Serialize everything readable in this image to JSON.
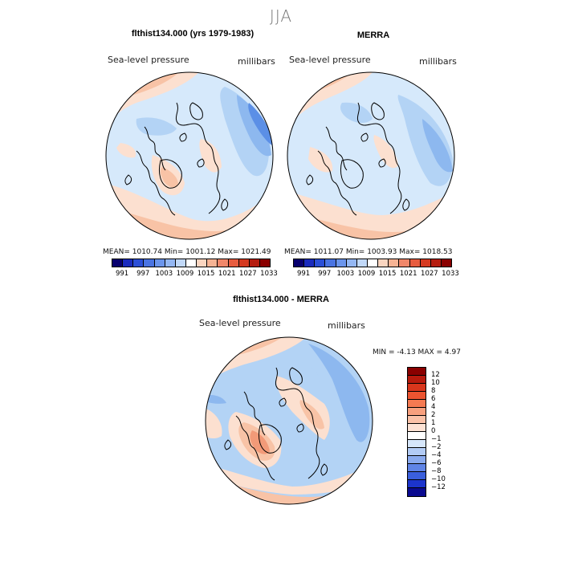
{
  "figure": {
    "season_title": "JJA",
    "colors": {
      "ice": "#d6e9fb",
      "light_blue": "#b3d3f5",
      "mid_blue": "#8db8ef",
      "blue": "#5b8fe6",
      "dark_blue": "#3061d8",
      "peach": "#fce0d0",
      "light_orange": "#f8c3a6",
      "orange": "#f29a78",
      "red_orange": "#e8643f"
    }
  },
  "panels": {
    "model": {
      "title": "flthist134.000 (yrs 1979-1983)",
      "field_label": "Sea-level pressure",
      "units_label": "millibars",
      "stats": "MEAN= 1010.74   Min= 1001.12   Max= 1021.49"
    },
    "obs": {
      "title": "MERRA",
      "field_label": "Sea-level pressure",
      "units_label": "millibars",
      "stats": "MEAN= 1011.07   Min= 1003.93   Max= 1018.53"
    },
    "diff": {
      "title": "flthist134.000 - MERRA",
      "field_label": "Sea-level pressure",
      "units_label": "millibars",
      "stats": "MIN =   -4.13 MAX =    4.97"
    }
  },
  "abs_colorbar": {
    "ticks": [
      "991",
      "997",
      "1003",
      "1009",
      "1015",
      "1021",
      "1027",
      "1033"
    ],
    "colors": [
      "#08006e",
      "#1a2bbd",
      "#2b4fd6",
      "#4a74e2",
      "#6b95ec",
      "#94b7f3",
      "#c1d8f8",
      "#ffffff",
      "#fad5c0",
      "#f6b394",
      "#f0876a",
      "#e75c3f",
      "#d53a21",
      "#b51d10",
      "#8a0000"
    ]
  },
  "diff_colorbar": {
    "ticks": [
      "12",
      "10",
      "8",
      "6",
      "4",
      "2",
      "1",
      "0",
      "−1",
      "−2",
      "−4",
      "−6",
      "−8",
      "−10",
      "−12"
    ],
    "colors": [
      "#8a0000",
      "#b81a0d",
      "#d9361c",
      "#ec5430",
      "#f57a52",
      "#f8a07e",
      "#fbc2a8",
      "#fde2d4",
      "#ffffff",
      "#d6e6fa",
      "#b2cbf5",
      "#8aaaee",
      "#5f84e6",
      "#3a5fdc",
      "#1c34cc",
      "#0a0a90"
    ]
  }
}
